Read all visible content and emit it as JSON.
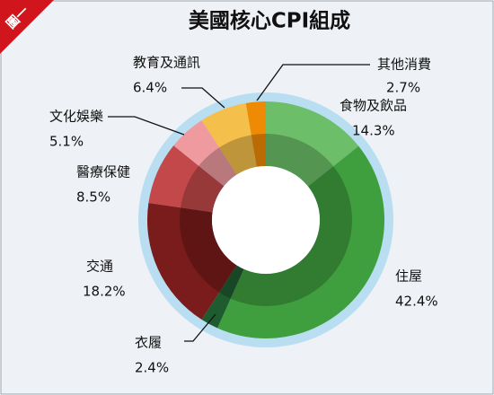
{
  "badge": "圖一",
  "chart_data": {
    "type": "donut",
    "title": "美國核心CPI組成",
    "categories": [
      "食物及飲品",
      "住屋",
      "衣履",
      "交通",
      "醫療保健",
      "文化娛樂",
      "教育及通訊",
      "其他消費"
    ],
    "values": [
      14.3,
      42.4,
      2.4,
      18.2,
      8.5,
      5.1,
      6.4,
      2.7
    ],
    "value_labels": [
      "14.3%",
      "42.4%",
      "2.4%",
      "18.2%",
      "8.5%",
      "5.1%",
      "6.4%",
      "2.7%"
    ],
    "colors": [
      "#6cbf68",
      "#3f9f3f",
      "#1e5c30",
      "#7b1c1c",
      "#c2484a",
      "#ee9a9e",
      "#f5bf4c",
      "#ef8a05"
    ]
  }
}
